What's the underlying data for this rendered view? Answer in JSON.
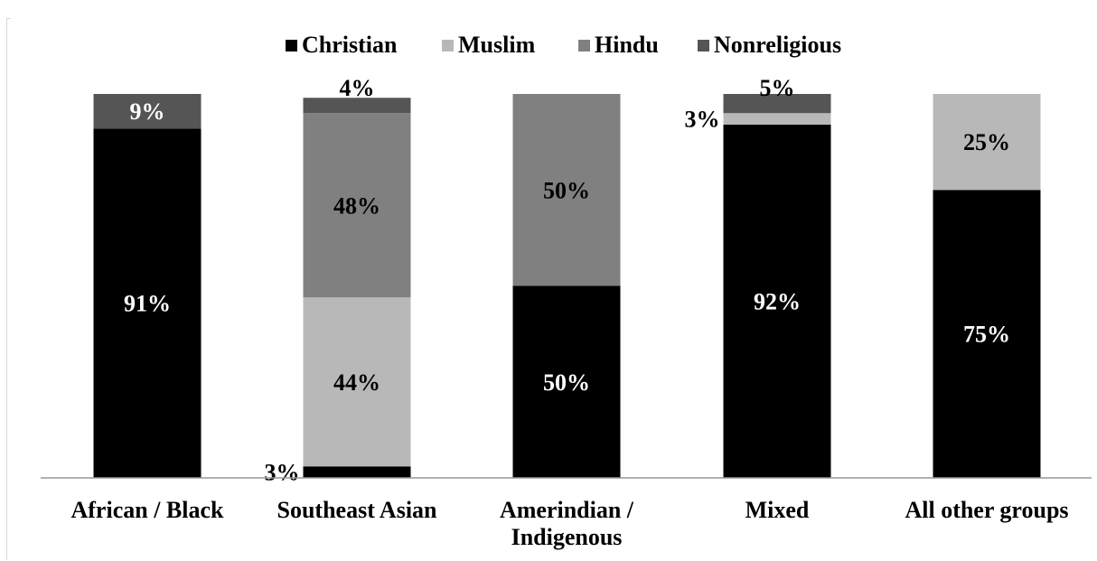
{
  "chart_data": {
    "type": "bar",
    "stacked": true,
    "normalized_percent": true,
    "categories": [
      [
        "African / Black"
      ],
      [
        "Southeast Asian"
      ],
      [
        "Amerindian /",
        "Indigenous"
      ],
      [
        "Mixed"
      ],
      [
        "All other groups"
      ]
    ],
    "series": [
      {
        "name": "Christian",
        "values": [
          91,
          3,
          50,
          92,
          75
        ]
      },
      {
        "name": "Muslim",
        "values": [
          0,
          44,
          0,
          3,
          25
        ]
      },
      {
        "name": "Hindu",
        "values": [
          0,
          48,
          50,
          0,
          0
        ]
      },
      {
        "name": "Nonreligious",
        "values": [
          9,
          4,
          0,
          5,
          0
        ]
      }
    ],
    "data_labels": [
      [
        "91%",
        "",
        "",
        "9%"
      ],
      [
        "3%",
        "44%",
        "48%",
        "4%"
      ],
      [
        "50%",
        "",
        "50%",
        ""
      ],
      [
        "92%",
        "3%",
        "",
        "5%"
      ],
      [
        "75%",
        "25%",
        "",
        ""
      ]
    ],
    "colors": {
      "Christian": "#000000",
      "Muslim": "#b8b8b8",
      "Hindu": "#808080",
      "Nonreligious": "#555555"
    },
    "legend_position": "top",
    "ylim": [
      0,
      100
    ],
    "grid": false,
    "axis_line_color": "#999999"
  }
}
